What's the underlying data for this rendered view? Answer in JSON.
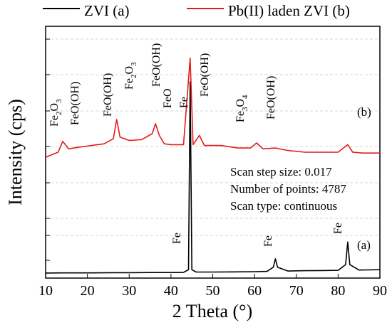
{
  "chart_data": {
    "type": "line",
    "xlabel": "2 Theta (°)",
    "ylabel": "Intensity (cps)",
    "xlim": [
      10,
      90
    ],
    "x_ticks": [
      "10",
      "20",
      "30",
      "40",
      "50",
      "60",
      "70",
      "80",
      "90"
    ],
    "y_ticks_labeled": false,
    "grid": true,
    "legend_position": "top",
    "series": [
      {
        "name": "ZVI (a)",
        "color": "#000000",
        "curve_label": "(a)",
        "x": [
          10,
          14,
          20,
          26,
          30,
          35,
          40,
          43,
          44.2,
          44.6,
          45.0,
          46,
          50,
          55,
          60,
          63,
          64.5,
          65,
          65.5,
          68,
          72,
          76,
          80,
          81.8,
          82.3,
          82.8,
          85,
          90
        ],
        "y": [
          3.0,
          3.1,
          3.1,
          3.2,
          3.2,
          3.3,
          3.3,
          3.4,
          5.0,
          117.0,
          5.0,
          3.6,
          3.6,
          3.7,
          3.8,
          4.0,
          6.5,
          11.5,
          6.5,
          4.2,
          4.4,
          4.5,
          4.6,
          8.0,
          21.5,
          8.0,
          4.8,
          5.0
        ]
      },
      {
        "name": "Pb(II) laden ZVI (b)",
        "color": "#e41a1c",
        "curve_label": "(b)",
        "x": [
          10,
          11.5,
          13,
          14.1,
          15.5,
          18,
          21,
          24,
          26.2,
          27.0,
          27.8,
          30,
          33,
          35.5,
          36.3,
          37.2,
          38.4,
          40,
          43,
          44.6,
          45.3,
          46.8,
          48,
          52,
          56,
          59,
          60.5,
          62,
          65,
          68,
          72,
          76,
          80,
          82.3,
          83.5,
          86,
          90
        ],
        "y": [
          72,
          73.5,
          75,
          81.5,
          77,
          78,
          79,
          80,
          83,
          94.5,
          84,
          82,
          82.5,
          86,
          92,
          85,
          80,
          79.5,
          79.5,
          131,
          79.5,
          85,
          79,
          79,
          77.5,
          77.5,
          80.5,
          77,
          77.5,
          76,
          75,
          75,
          75,
          79.5,
          75,
          74.5,
          74.5
        ]
      }
    ],
    "annotations": {
      "fe_a_1": "Fe",
      "fe_a_2": "Fe",
      "fe_a_3": "Fe",
      "fe2o3_b_1_base": "Fe",
      "fe2o3_b_1_sub1": "2",
      "fe2o3_b_1_mid": "O",
      "fe2o3_b_1_sub2": "3",
      "feooh_b_1": "FeO(OH)",
      "feooh_b_2": "FeO(OH)",
      "fe2o3_b_2_base": "Fe",
      "fe2o3_b_2_sub1": "2",
      "fe2o3_b_2_mid": "O",
      "fe2o3_b_2_sub2": "3",
      "feooh_b_3": "FeO(OH)",
      "feo_b": "FeO",
      "fe_b": "Fe",
      "feooh_b_4": "FeO(OH)",
      "fe3o4_base": "Fe",
      "fe3o4_sub1": "3",
      "fe3o4_mid": "O",
      "fe3o4_sub2": "4",
      "feooh_b_5": "FeO(OH)"
    },
    "scan_info": [
      "Scan step size: 0.017",
      "Number of points: 4787",
      "Scan type: continuous"
    ]
  }
}
